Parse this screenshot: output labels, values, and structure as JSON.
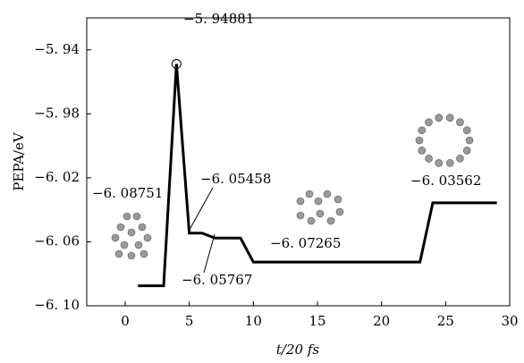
{
  "chart_data": {
    "type": "line",
    "x": [
      1,
      3,
      4,
      5,
      6,
      7,
      9,
      10,
      23,
      24,
      29
    ],
    "series": [
      {
        "color": "#000000",
        "values": [
          -6.08751,
          -6.08751,
          -5.94881,
          -6.05458,
          -6.05458,
          -6.05767,
          -6.05767,
          -6.07265,
          -6.07265,
          -6.03562,
          -6.03562
        ],
        "value_labels": [
          "−6. 08751",
          null,
          "−5. 94881",
          "−6. 05458",
          null,
          "−6. 05767",
          null,
          "−6. 07265",
          null,
          "−6. 03562",
          null
        ]
      }
    ],
    "xlabel": "t/20 fs",
    "ylabel": "PEPA/eV",
    "xlim": [
      -3,
      30
    ],
    "xticks": [
      0,
      5,
      10,
      15,
      20,
      25,
      30
    ],
    "ylim": [
      -6.1,
      -5.92
    ],
    "yticks": [
      {
        "value": -6.1,
        "label": "−6. 10"
      },
      {
        "value": -6.06,
        "label": "−6. 06"
      },
      {
        "value": -6.02,
        "label": "−6. 02"
      },
      {
        "value": -5.98,
        "label": "−5. 98"
      },
      {
        "value": -5.94,
        "label": "−5. 94"
      }
    ]
  }
}
